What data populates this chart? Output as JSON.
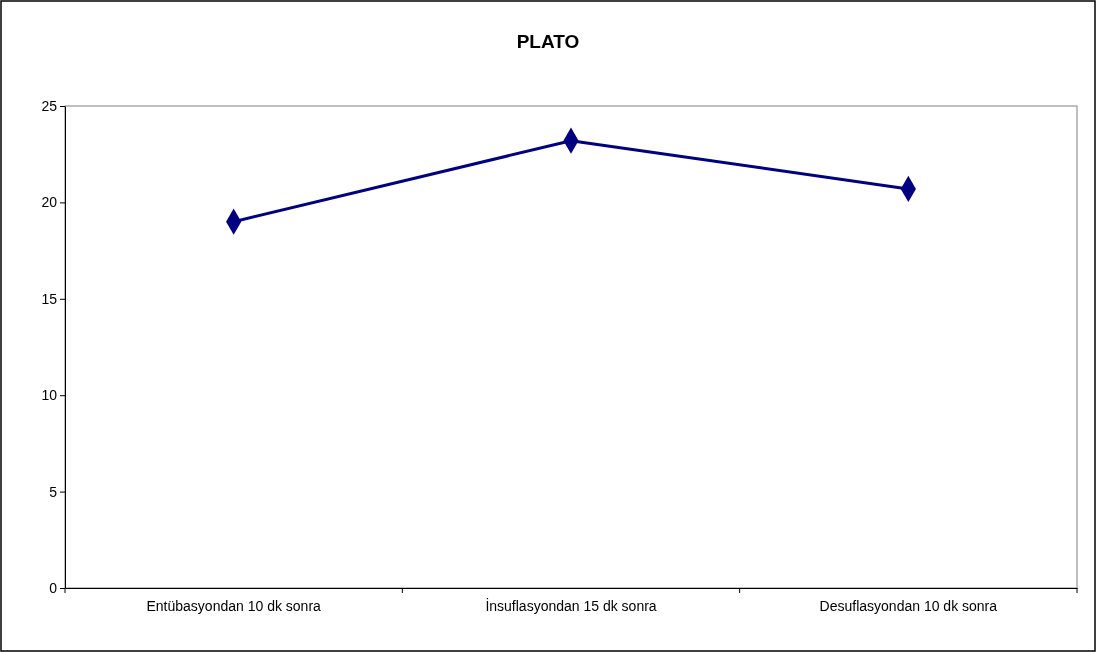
{
  "chart_data": {
    "type": "line",
    "title": "PLATO",
    "categories": [
      "Entübasyondan 10 dk sonra",
      "İnsuflasyondan 15 dk sonra",
      "Desuflasyondan 10 dk sonra"
    ],
    "series": [
      {
        "color": "#000080",
        "values": [
          19.0,
          23.2,
          20.7
        ]
      }
    ],
    "ylim": [
      0,
      25
    ],
    "yticks": [
      0,
      5,
      10,
      15,
      20,
      25
    ],
    "grid": false,
    "marker": "diamond",
    "line_style": "solid"
  }
}
